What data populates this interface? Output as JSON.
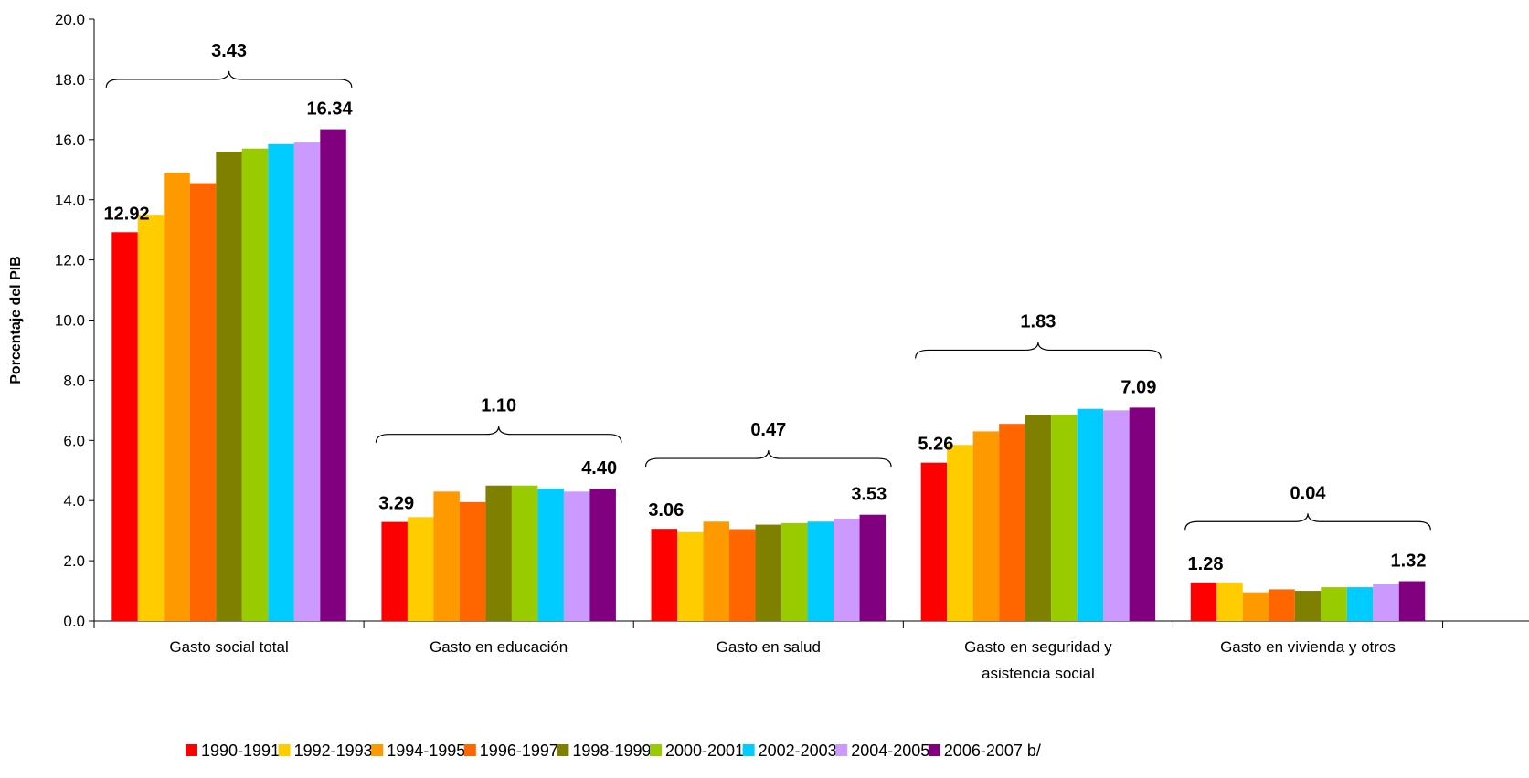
{
  "chart_data": {
    "type": "bar",
    "ylabel": "Porcentaje del PIB",
    "ylim": [
      0,
      20
    ],
    "yticks": [
      "0.0",
      "2.0",
      "4.0",
      "6.0",
      "8.0",
      "10.0",
      "12.0",
      "14.0",
      "16.0",
      "18.0",
      "20.0"
    ],
    "categories": [
      [
        "Gasto social total"
      ],
      [
        "Gasto en educación"
      ],
      [
        "Gasto en salud"
      ],
      [
        "Gasto en seguridad y",
        "asistencia social"
      ],
      [
        "Gasto en vivienda y otros"
      ]
    ],
    "series": [
      {
        "name": "1990-1991",
        "color": "#ff0000",
        "values": [
          12.92,
          3.29,
          3.06,
          5.26,
          1.28
        ]
      },
      {
        "name": "1992-1993",
        "color": "#ffcc00",
        "values": [
          13.5,
          3.45,
          2.95,
          5.85,
          1.28
        ]
      },
      {
        "name": "1994-1995",
        "color": "#ff9900",
        "values": [
          14.9,
          4.3,
          3.3,
          6.3,
          0.95
        ]
      },
      {
        "name": "1996-1997",
        "color": "#ff6600",
        "values": [
          14.55,
          3.95,
          3.05,
          6.55,
          1.05
        ]
      },
      {
        "name": "1998-1999",
        "color": "#808000",
        "values": [
          15.6,
          4.5,
          3.2,
          6.85,
          1.0
        ]
      },
      {
        "name": "2000-2001",
        "color": "#99cc00",
        "values": [
          15.7,
          4.5,
          3.25,
          6.85,
          1.12
        ]
      },
      {
        "name": "2002-2003",
        "color": "#00ccff",
        "values": [
          15.85,
          4.4,
          3.3,
          7.05,
          1.12
        ]
      },
      {
        "name": "2004-2005",
        "color": "#cc99ff",
        "values": [
          15.9,
          4.3,
          3.4,
          7.0,
          1.22
        ]
      },
      {
        "name": "2006-2007 b/",
        "color": "#800080",
        "values": [
          16.34,
          4.4,
          3.53,
          7.09,
          1.32
        ]
      }
    ],
    "data_labels": [
      {
        "first": "12.92",
        "last": "16.34"
      },
      {
        "first": "3.29",
        "last": "4.40"
      },
      {
        "first": "3.06",
        "last": "3.53"
      },
      {
        "first": "5.26",
        "last": "7.09"
      },
      {
        "first": "1.28",
        "last": "1.32"
      }
    ],
    "brackets": [
      {
        "label": "3.43",
        "level": 18.0
      },
      {
        "label": "1.10",
        "level": 6.2
      },
      {
        "label": "0.47",
        "level": 5.4
      },
      {
        "label": "1.83",
        "level": 9.0
      },
      {
        "label": "0.04",
        "level": 3.3
      }
    ],
    "grid": false,
    "legend_position": "bottom"
  }
}
